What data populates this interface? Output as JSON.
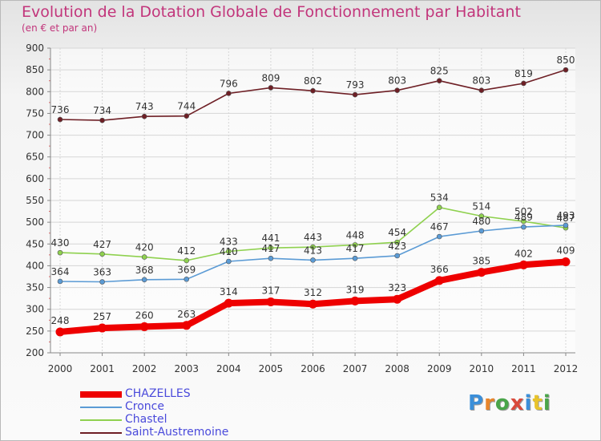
{
  "chart_data": {
    "type": "line",
    "title": "Evolution de la Dotation Globale de Fonctionnement par Habitant",
    "subtitle": "(en € et par an)",
    "xlabel": "",
    "ylabel": "",
    "ylim": [
      200,
      900
    ],
    "yticks": [
      200,
      250,
      300,
      350,
      400,
      450,
      500,
      550,
      600,
      650,
      700,
      750,
      800,
      850,
      900
    ],
    "grid": true,
    "legend_position": "bottom-left",
    "x": [
      "2000",
      "2001",
      "2002",
      "2003",
      "2004",
      "2005",
      "2006",
      "2007",
      "2008",
      "2009",
      "2010",
      "2011",
      "2012"
    ],
    "series": [
      {
        "name": "CHAZELLES",
        "color": "#ee0000",
        "values": [
          248,
          257,
          260,
          263,
          314,
          317,
          312,
          319,
          323,
          366,
          385,
          402,
          409
        ]
      },
      {
        "name": "Cronce",
        "color": "#5b9bd5",
        "values": [
          364,
          363,
          368,
          369,
          410,
          417,
          413,
          417,
          423,
          467,
          480,
          489,
          493
        ]
      },
      {
        "name": "Chastel",
        "color": "#8fd14f",
        "values": [
          430,
          427,
          420,
          412,
          433,
          441,
          443,
          448,
          454,
          534,
          514,
          502,
          487
        ]
      },
      {
        "name": "Saint-Austremoine",
        "color": "#6e1f25",
        "values": [
          736,
          734,
          743,
          744,
          796,
          809,
          802,
          793,
          803,
          825,
          803,
          819,
          850
        ]
      }
    ]
  },
  "logo": {
    "text": "Proxiti",
    "letters": [
      "P",
      "r",
      "o",
      "x",
      "i",
      "t",
      "i"
    ],
    "colors": [
      "#3b8fd9",
      "#e8852a",
      "#4aa54a",
      "#d94a3b",
      "#3b8fd9",
      "#e8c32a",
      "#4aa54a"
    ]
  }
}
